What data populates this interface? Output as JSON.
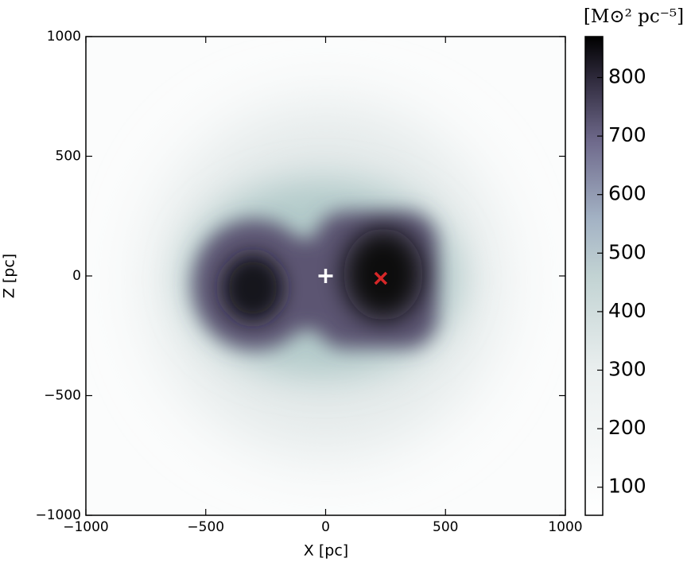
{
  "chart_data": {
    "type": "density-map",
    "xlabel": "X [pc]",
    "ylabel": "Z [pc]",
    "xlim": [
      -1000,
      1000
    ],
    "ylim": [
      -1000,
      1000
    ],
    "xticks": [
      {
        "value": -1000,
        "label": "−1000"
      },
      {
        "value": -500,
        "label": "−500"
      },
      0,
      500,
      1000
    ],
    "yticks": [
      {
        "value": -1000,
        "label": "−1000"
      },
      {
        "value": -500,
        "label": "−500"
      },
      0,
      500,
      1000
    ],
    "points": [
      {
        "x": 0,
        "y": 0,
        "marker": "+",
        "color": "#ffffff"
      },
      {
        "x": 230,
        "y": -10,
        "marker": "x",
        "color": "#d62728"
      }
    ],
    "colorbar": {
      "label": "[M⊙² pc⁻⁵]",
      "colormap": "bone_r",
      "lim": [
        52,
        870
      ],
      "ticks": [
        100,
        200,
        300,
        400,
        500,
        600,
        700,
        800
      ]
    }
  }
}
